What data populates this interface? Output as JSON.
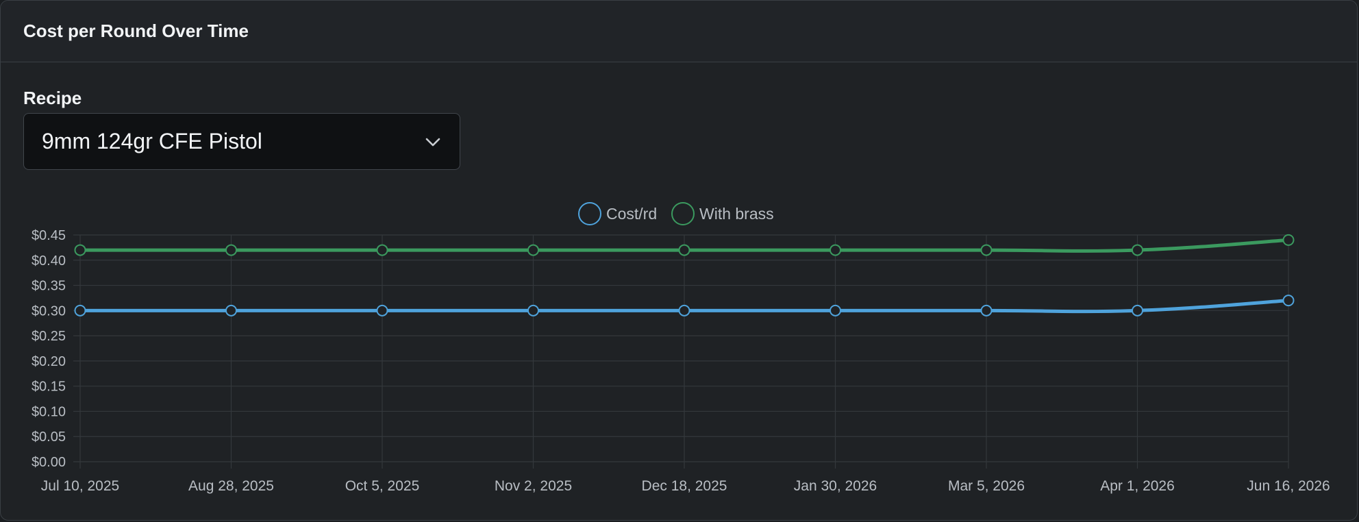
{
  "card": {
    "title": "Cost per Round Over Time"
  },
  "recipe": {
    "label": "Recipe",
    "selected": "9mm 124gr CFE Pistol"
  },
  "colors": {
    "cost": "#4fa3dc",
    "brass": "#3b9a5f",
    "grid": "#34383c",
    "tick": "#b9bec4"
  },
  "chart_data": {
    "type": "line",
    "x": [
      "Jul 10, 2025",
      "Aug 28, 2025",
      "Oct 5, 2025",
      "Nov 2, 2025",
      "Dec 18, 2025",
      "Jan 30, 2026",
      "Mar 5, 2026",
      "Apr 1, 2026",
      "Jun 16, 2026"
    ],
    "series": [
      {
        "name": "Cost/rd",
        "values": [
          0.3,
          0.3,
          0.3,
          0.3,
          0.3,
          0.3,
          0.3,
          0.3,
          0.32
        ]
      },
      {
        "name": "With brass",
        "values": [
          0.42,
          0.42,
          0.42,
          0.42,
          0.42,
          0.42,
          0.42,
          0.42,
          0.44
        ]
      }
    ],
    "y_ticks": [
      "$0.00",
      "$0.05",
      "$0.10",
      "$0.15",
      "$0.20",
      "$0.25",
      "$0.30",
      "$0.35",
      "$0.40",
      "$0.45"
    ],
    "ylim": [
      0,
      0.45
    ],
    "grid": true,
    "legend": "top-center"
  }
}
